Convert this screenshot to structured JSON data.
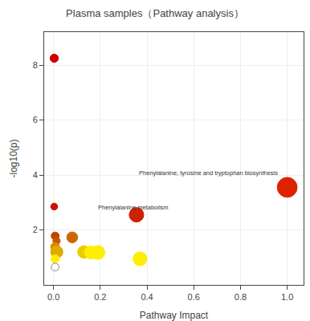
{
  "chart_data": {
    "type": "scatter",
    "title": "Plasma samples（Pathway analysis）",
    "xlabel": "Pathway Impact",
    "ylabel": "-log10(p)",
    "x": [
      0.003,
      0.003,
      1.0,
      0.355,
      0.007,
      0.013,
      0.08,
      0.007,
      0.014,
      0.13,
      0.16,
      0.19,
      0.007,
      0.007,
      0.37
    ],
    "values": [
      8.25,
      2.85,
      3.55,
      2.55,
      1.78,
      1.6,
      1.73,
      1.38,
      1.2,
      1.2,
      1.18,
      1.18,
      0.95,
      0.65,
      0.95
    ],
    "sizes": [
      55,
      38,
      320,
      170,
      50,
      42,
      95,
      65,
      120,
      125,
      135,
      155,
      55,
      48,
      155
    ],
    "colors": [
      "#cc0000",
      "#cc1100",
      "#dd2200",
      "#cc2200",
      "#bb4400",
      "#cc5500",
      "#cc6600",
      "#dd8800",
      "#ddaa00",
      "#eecc00",
      "#ffee00",
      "#ffee00",
      "#ffee00",
      "#ffffff",
      "#ffee00"
    ],
    "annotations": [
      {
        "text": "Phenylalanine, tyrosine and tryptophan biosynthesis",
        "x": 0.36,
        "y": 4.08
      },
      {
        "text": "Phenylalanine metabolism",
        "x": 0.185,
        "y": 2.82
      }
    ],
    "xlim": [
      -0.04,
      1.07
    ],
    "ylim": [
      0.0,
      9.2
    ],
    "xticks": [
      {
        "value": 0.0,
        "label": "0.0"
      },
      0.2,
      0.4,
      0.6,
      0.8,
      {
        "value": 1.0,
        "label": "1.0"
      }
    ],
    "yticks": [
      2,
      4,
      6,
      8
    ],
    "grid": true
  }
}
